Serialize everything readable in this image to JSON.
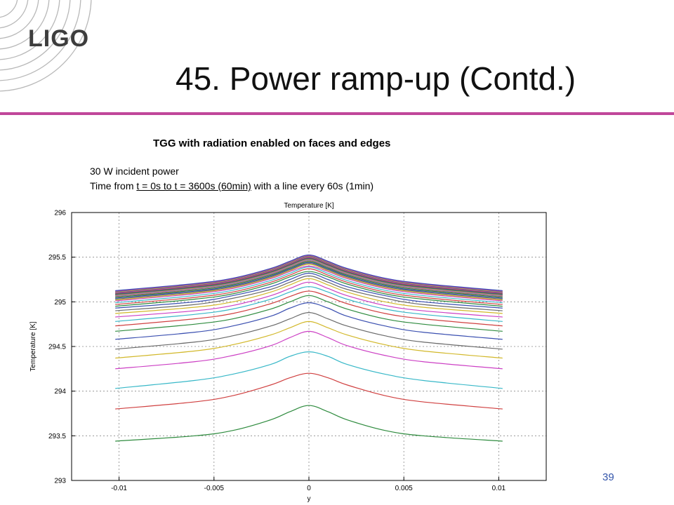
{
  "header": {
    "logo_text": "LIGO",
    "title": "45. Power ramp-up (Contd.)"
  },
  "notes": {
    "chart_heading": "TGG with radiation enabled on faces and edges",
    "line1": "30 W incident power",
    "line2_prefix": "Time from ",
    "line2_underlined": "t = 0s to t = 3600s (60min)",
    "line2_suffix": " with a line every 60s (1min)"
  },
  "footer": {
    "page_number": "39"
  },
  "colors": {
    "accent_rule": "#c0469a",
    "page_number": "#3355aa",
    "logo": "#3d3d3d"
  },
  "chart_data": {
    "type": "line",
    "title": "Temperature [K]",
    "xlabel": "y",
    "ylabel": "Temperature [K]",
    "xlim": [
      -0.0125,
      0.0125
    ],
    "ylim": [
      293,
      296
    ],
    "x_ticks": [
      "-0.01",
      "-0.005",
      "0",
      "0.005",
      "0.01"
    ],
    "y_ticks": [
      "293",
      "293.5",
      "294",
      "294.5",
      "295",
      "295.5",
      "296"
    ],
    "grid": true,
    "x": [
      -0.0102,
      -0.006,
      -0.004,
      -0.002,
      -0.001,
      0,
      0.001,
      0.002,
      0.004,
      0.006,
      0.0102
    ],
    "series": [
      {
        "values": [
          293.44,
          293.5,
          293.56,
          293.68,
          293.77,
          293.84,
          293.77,
          293.68,
          293.56,
          293.5,
          293.44
        ],
        "color": "#2e8b3e"
      },
      {
        "values": [
          293.8,
          293.88,
          293.95,
          294.07,
          294.15,
          294.2,
          294.15,
          294.07,
          293.95,
          293.88,
          293.8
        ],
        "color": "#d04040"
      },
      {
        "values": [
          294.03,
          294.12,
          294.19,
          294.3,
          294.39,
          294.44,
          294.39,
          294.3,
          294.19,
          294.12,
          294.03
        ],
        "color": "#38b8c8"
      },
      {
        "values": [
          294.25,
          294.33,
          294.4,
          294.51,
          294.6,
          294.67,
          294.6,
          294.51,
          294.4,
          294.33,
          294.25
        ],
        "color": "#cc3fc4"
      },
      {
        "values": [
          294.37,
          294.45,
          294.52,
          294.63,
          294.71,
          294.78,
          294.71,
          294.63,
          294.52,
          294.45,
          294.37
        ],
        "color": "#d2b82a"
      },
      {
        "values": [
          294.47,
          294.55,
          294.62,
          294.73,
          294.81,
          294.88,
          294.81,
          294.73,
          294.62,
          294.55,
          294.47
        ],
        "color": "#6a6a6a"
      },
      {
        "values": [
          294.58,
          294.66,
          294.73,
          294.84,
          294.93,
          294.99,
          294.93,
          294.84,
          294.73,
          294.66,
          294.58
        ],
        "color": "#3a4fb0"
      },
      {
        "values": [
          294.67,
          294.75,
          294.81,
          294.92,
          295.0,
          295.07,
          295.0,
          294.92,
          294.81,
          294.75,
          294.67
        ],
        "color": "#2e8b3e"
      },
      {
        "values": [
          294.73,
          294.81,
          294.87,
          294.98,
          295.06,
          295.12,
          295.06,
          294.98,
          294.87,
          294.81,
          294.73
        ],
        "color": "#d04040"
      },
      {
        "values": [
          294.78,
          294.86,
          294.92,
          295.03,
          295.11,
          295.17,
          295.11,
          295.03,
          294.92,
          294.86,
          294.78
        ],
        "color": "#38b8c8"
      },
      {
        "values": [
          294.83,
          294.9,
          294.96,
          295.07,
          295.15,
          295.22,
          295.15,
          295.07,
          294.96,
          294.9,
          294.83
        ],
        "color": "#cc3fc4"
      },
      {
        "values": [
          294.87,
          294.94,
          295.0,
          295.11,
          295.19,
          295.26,
          295.19,
          295.11,
          295.0,
          294.94,
          294.87
        ],
        "color": "#d2b82a"
      },
      {
        "values": [
          294.9,
          294.97,
          295.04,
          295.14,
          295.22,
          295.29,
          295.22,
          295.14,
          295.04,
          294.97,
          294.9
        ],
        "color": "#6a6a6a"
      },
      {
        "values": [
          294.93,
          295.0,
          295.07,
          295.17,
          295.25,
          295.32,
          295.25,
          295.17,
          295.07,
          295.0,
          294.93
        ],
        "color": "#3a4fb0"
      },
      {
        "values": [
          294.95,
          295.03,
          295.09,
          295.2,
          295.28,
          295.34,
          295.28,
          295.2,
          295.09,
          295.03,
          294.95
        ],
        "color": "#2e8b3e"
      },
      {
        "values": [
          294.97,
          295.05,
          295.11,
          295.22,
          295.3,
          295.37,
          295.3,
          295.22,
          295.11,
          295.05,
          294.97
        ],
        "color": "#d04040"
      },
      {
        "values": [
          294.99,
          295.07,
          295.13,
          295.24,
          295.32,
          295.39,
          295.32,
          295.24,
          295.13,
          295.07,
          294.99
        ],
        "color": "#38b8c8"
      },
      {
        "values": [
          295.01,
          295.09,
          295.15,
          295.26,
          295.34,
          295.4,
          295.34,
          295.26,
          295.15,
          295.09,
          295.01
        ],
        "color": "#cc3fc4"
      },
      {
        "values": [
          295.02,
          295.1,
          295.16,
          295.27,
          295.35,
          295.42,
          295.35,
          295.27,
          295.16,
          295.1,
          295.02
        ],
        "color": "#d2b82a"
      },
      {
        "values": [
          295.03,
          295.11,
          295.17,
          295.28,
          295.36,
          295.43,
          295.36,
          295.28,
          295.17,
          295.11,
          295.03
        ],
        "color": "#6a6a6a"
      },
      {
        "values": [
          295.04,
          295.12,
          295.18,
          295.29,
          295.37,
          295.44,
          295.37,
          295.29,
          295.18,
          295.12,
          295.04
        ],
        "color": "#3a4fb0"
      },
      {
        "values": [
          295.05,
          295.13,
          295.19,
          295.3,
          295.38,
          295.45,
          295.38,
          295.3,
          295.19,
          295.13,
          295.05
        ],
        "color": "#2e8b3e"
      },
      {
        "values": [
          295.06,
          295.14,
          295.2,
          295.31,
          295.39,
          295.46,
          295.39,
          295.31,
          295.2,
          295.14,
          295.06
        ],
        "color": "#d04040"
      },
      {
        "values": [
          295.065,
          295.145,
          295.205,
          295.315,
          295.395,
          295.465,
          295.395,
          295.315,
          295.205,
          295.145,
          295.065
        ],
        "color": "#38b8c8"
      },
      {
        "values": [
          295.07,
          295.15,
          295.21,
          295.32,
          295.4,
          295.47,
          295.4,
          295.32,
          295.21,
          295.15,
          295.07
        ],
        "color": "#cc3fc4"
      },
      {
        "values": [
          295.075,
          295.155,
          295.215,
          295.325,
          295.405,
          295.475,
          295.405,
          295.325,
          295.215,
          295.155,
          295.075
        ],
        "color": "#d2b82a"
      },
      {
        "values": [
          295.08,
          295.16,
          295.22,
          295.33,
          295.41,
          295.48,
          295.41,
          295.33,
          295.22,
          295.16,
          295.08
        ],
        "color": "#6a6a6a"
      },
      {
        "values": [
          295.085,
          295.165,
          295.225,
          295.335,
          295.415,
          295.485,
          295.415,
          295.335,
          295.225,
          295.165,
          295.085
        ],
        "color": "#3a4fb0"
      },
      {
        "values": [
          295.09,
          295.17,
          295.23,
          295.34,
          295.42,
          295.49,
          295.42,
          295.34,
          295.23,
          295.17,
          295.09
        ],
        "color": "#2e8b3e"
      },
      {
        "values": [
          295.095,
          295.175,
          295.235,
          295.345,
          295.425,
          295.495,
          295.425,
          295.345,
          295.235,
          295.175,
          295.095
        ],
        "color": "#d04040"
      },
      {
        "values": [
          295.1,
          295.18,
          295.24,
          295.35,
          295.43,
          295.5,
          295.43,
          295.35,
          295.24,
          295.18,
          295.1
        ],
        "color": "#cc3fc4"
      },
      {
        "values": [
          295.105,
          295.185,
          295.245,
          295.355,
          295.435,
          295.505,
          295.435,
          295.355,
          295.245,
          295.185,
          295.105
        ],
        "color": "#3a4fb0"
      },
      {
        "values": [
          295.11,
          295.19,
          295.25,
          295.36,
          295.44,
          295.51,
          295.44,
          295.36,
          295.25,
          295.19,
          295.11
        ],
        "color": "#d2b82a"
      },
      {
        "values": [
          295.115,
          295.195,
          295.255,
          295.365,
          295.445,
          295.515,
          295.445,
          295.365,
          295.255,
          295.195,
          295.115
        ],
        "color": "#6a6a6a"
      },
      {
        "values": [
          295.12,
          295.2,
          295.26,
          295.37,
          295.45,
          295.52,
          295.45,
          295.37,
          295.26,
          295.2,
          295.12
        ],
        "color": "#cc3fc4"
      },
      {
        "values": [
          295.125,
          295.205,
          295.265,
          295.375,
          295.455,
          295.525,
          295.455,
          295.375,
          295.265,
          295.205,
          295.125
        ],
        "color": "#3a4fb0"
      }
    ]
  }
}
